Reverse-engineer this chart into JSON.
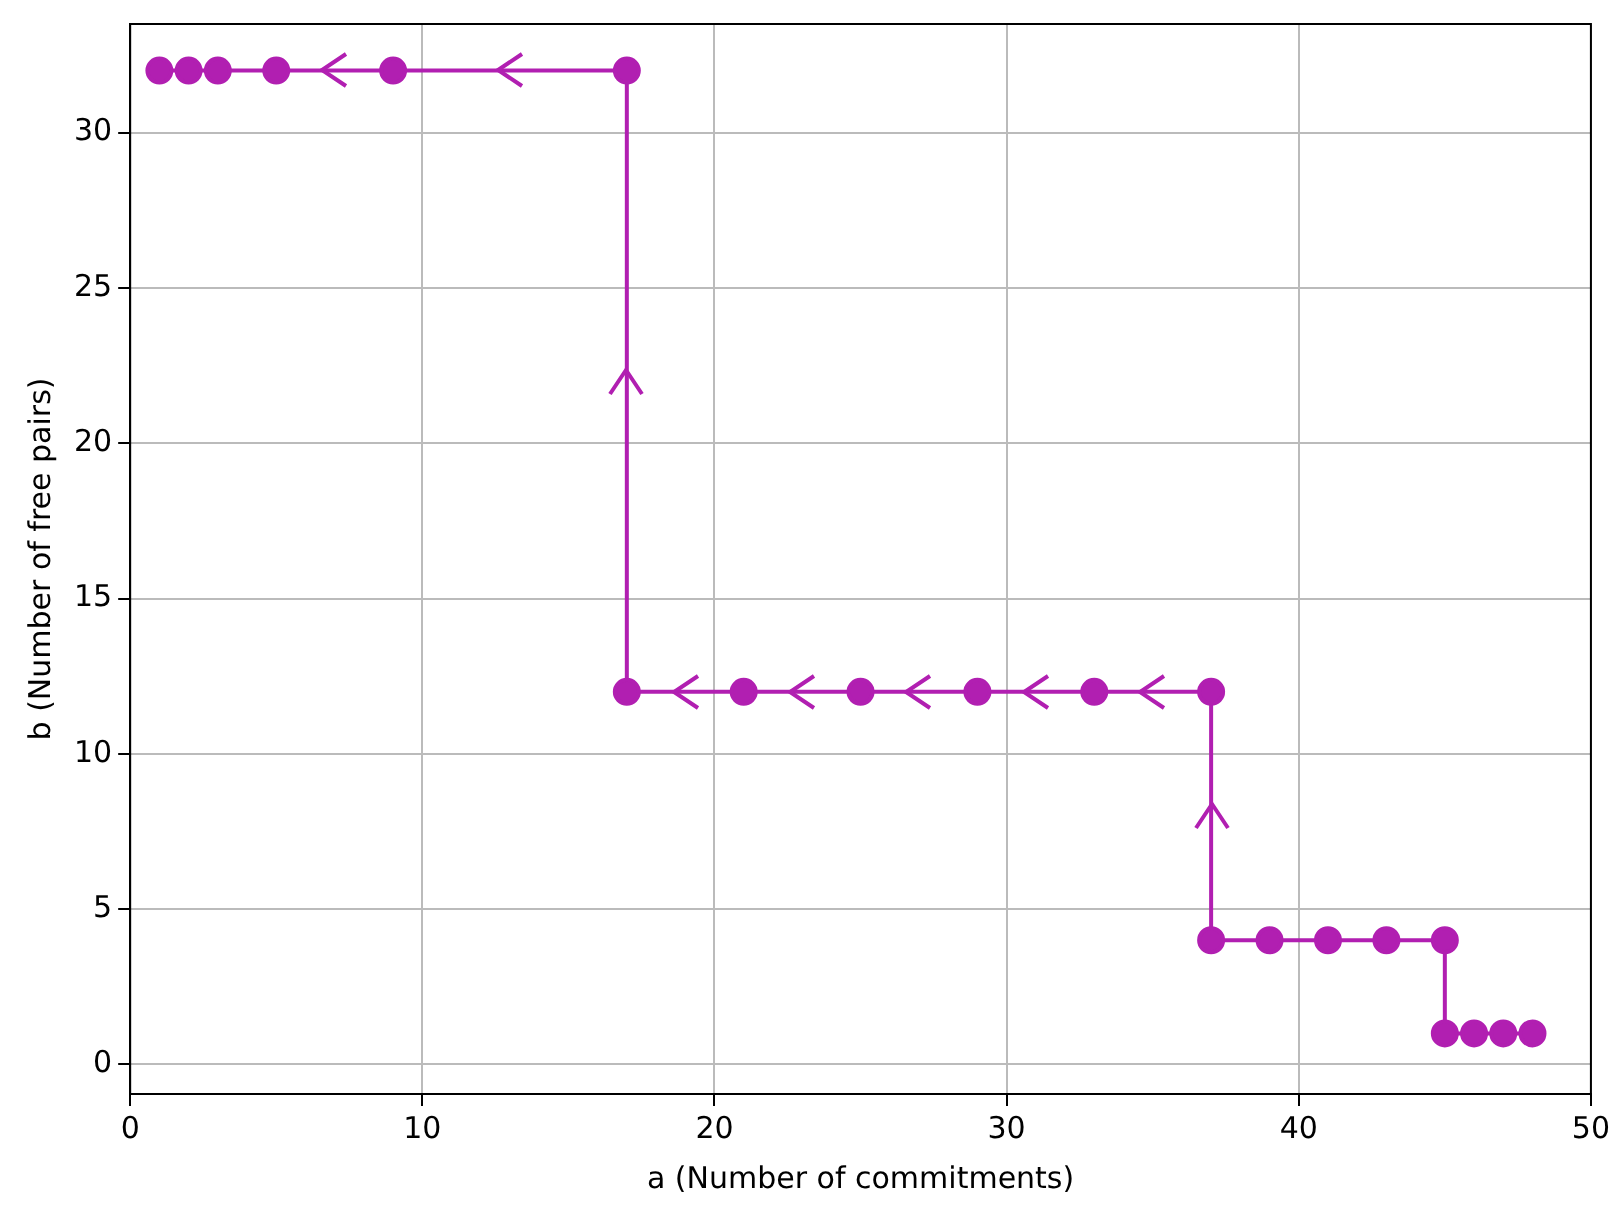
{
  "chart_data": {
    "type": "line",
    "xlabel": "a (Number of commitments)",
    "ylabel": "b (Number of free pairs)",
    "xlim": [
      0,
      50
    ],
    "ylim": [
      -0.95,
      33.5
    ],
    "xticks": [
      0,
      10,
      20,
      30,
      40,
      50
    ],
    "yticks": [
      0,
      5,
      10,
      15,
      20,
      25,
      30
    ],
    "grid": true,
    "marker": "circle",
    "line_style": "solid",
    "x": [
      1,
      2,
      3,
      5,
      9,
      17,
      17,
      21,
      25,
      29,
      33,
      37,
      37,
      39,
      41,
      43,
      45,
      45,
      46,
      47,
      48
    ],
    "series": [
      {
        "color": "#b11fb1",
        "values": [
          32,
          32,
          32,
          32,
          32,
          32,
          12,
          12,
          12,
          12,
          12,
          12,
          4,
          4,
          4,
          4,
          4,
          1,
          1,
          1,
          1
        ]
      }
    ]
  }
}
